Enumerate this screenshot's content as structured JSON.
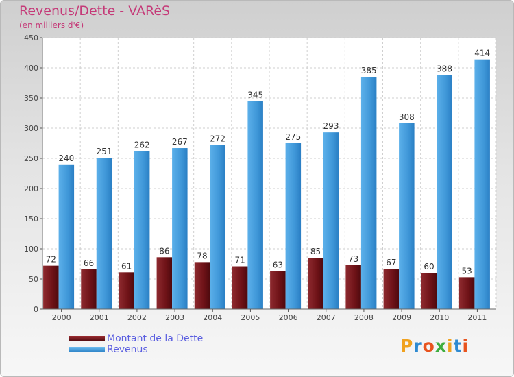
{
  "title": "Revenus/Dette - VARèS",
  "subtitle": "(en milliers d'€)",
  "logo": {
    "text": "Proxiti",
    "colors": [
      "#f0a21f",
      "#2e8ad1",
      "#e8531d",
      "#3fae3f",
      "#f0a21f",
      "#2e8ad1",
      "#e8531d"
    ]
  },
  "chart_data": {
    "type": "bar",
    "title": "Revenus/Dette - VARèS",
    "ylabel": "(en milliers d'€)",
    "xlabel": "",
    "categories": [
      "2000",
      "2001",
      "2002",
      "2003",
      "2004",
      "2005",
      "2006",
      "2007",
      "2008",
      "2009",
      "2010",
      "2011"
    ],
    "series": [
      {
        "name": "Montant de la Dette",
        "color": "#7a1a1e",
        "values": [
          72,
          66,
          61,
          86,
          78,
          71,
          63,
          85,
          73,
          67,
          60,
          53
        ]
      },
      {
        "name": "Revenus",
        "color": "#4aa3e3",
        "values": [
          240,
          251,
          262,
          267,
          272,
          345,
          275,
          293,
          385,
          308,
          388,
          414
        ]
      }
    ],
    "ylim": [
      0,
      450
    ],
    "yticks": [
      0,
      50,
      100,
      150,
      200,
      250,
      300,
      350,
      400,
      450
    ],
    "grid": true,
    "legend": "bottom-left"
  }
}
